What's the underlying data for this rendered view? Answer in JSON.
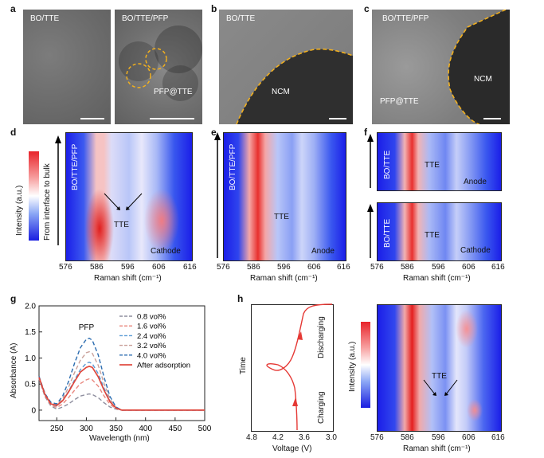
{
  "panels": {
    "a": {
      "letter": "a",
      "left_label": "BO/TTE",
      "right_label": "BO/TTE/PFP",
      "inset_label": "PFP@TTE"
    },
    "b": {
      "letter": "b",
      "label": "BO/TTE",
      "region_label": "NCM"
    },
    "c": {
      "letter": "c",
      "label": "BO/TTE/PFP",
      "region_label": "NCM",
      "inset_label": "PFP@TTE"
    },
    "d": {
      "letter": "d",
      "vertical_label": "BO/TTE/PFP",
      "annotation": "TTE",
      "region_label": "Cathode",
      "colorbar_label": "Intensity (a.u.)",
      "arrow_label": "From interface to bulk",
      "xlabel": "Raman shift (cm⁻¹)",
      "xticks": [
        "576",
        "586",
        "596",
        "606",
        "616"
      ]
    },
    "e": {
      "letter": "e",
      "vertical_label": "BO/TTE/PFP",
      "annotation": "TTE",
      "region_label": "Anode",
      "xlabel": "Raman shift (cm⁻¹)",
      "xticks": [
        "576",
        "586",
        "596",
        "606",
        "616"
      ]
    },
    "f": {
      "letter": "f",
      "top": {
        "vertical_label": "BO/TTE",
        "annotation": "TTE",
        "region_label": "Anode"
      },
      "bottom": {
        "vertical_label": "BO/TTE",
        "annotation": "TTE",
        "region_label": "Cathode"
      },
      "xlabel": "Raman shift (cm⁻¹)",
      "xticks": [
        "576",
        "586",
        "596",
        "606",
        "616"
      ]
    },
    "h": {
      "letter": "h",
      "time_label": "Time",
      "discharging_label": "Discharging",
      "charging_label": "Charging",
      "voltage_label": "Voltage (V)",
      "voltage_ticks": [
        "4.8",
        "4.2",
        "3.6",
        "3.0"
      ],
      "colorbar_label": "Intensity (a.u.)",
      "annotation": "TTE",
      "xlabel": "Raman shift (cm⁻¹)",
      "xticks": [
        "576",
        "586",
        "596",
        "606",
        "616"
      ]
    }
  },
  "chart_data": {
    "type": "line",
    "panel_letter": "g",
    "title": "",
    "xlabel": "Wavelength (nm)",
    "ylabel": "Absorbance (A)",
    "xlim": [
      220,
      500
    ],
    "ylim": [
      -0.2,
      2.0
    ],
    "xticks": [
      250,
      300,
      350,
      400,
      450,
      500
    ],
    "yticks": [
      0,
      0.5,
      1.0,
      1.5,
      2.0
    ],
    "ytick_labels": [
      "0",
      "0.5",
      "1.0",
      "1.5",
      "2.0"
    ],
    "peak_annotation": "PFP",
    "legend_position": "top-right",
    "x": [
      220,
      230,
      240,
      250,
      260,
      270,
      280,
      290,
      300,
      305,
      310,
      320,
      330,
      340,
      350,
      360,
      380,
      400,
      450,
      500
    ],
    "series": [
      {
        "name": "0.8 vol%",
        "color": "#8e8e9e",
        "dashed": true,
        "values": [
          0.6,
          0.26,
          0.08,
          0.02,
          0.06,
          0.12,
          0.2,
          0.27,
          0.3,
          0.31,
          0.3,
          0.24,
          0.14,
          0.06,
          0.02,
          0.0,
          0.0,
          0.0,
          0.0,
          0.0
        ]
      },
      {
        "name": "1.6 vol%",
        "color": "#e9877e",
        "dashed": true,
        "values": [
          0.62,
          0.28,
          0.1,
          0.05,
          0.12,
          0.24,
          0.38,
          0.51,
          0.58,
          0.6,
          0.58,
          0.46,
          0.27,
          0.11,
          0.03,
          0.0,
          0.0,
          0.0,
          0.0,
          0.0
        ]
      },
      {
        "name": "2.4 vol%",
        "color": "#5b9bd5",
        "dashed": true,
        "values": [
          0.63,
          0.3,
          0.12,
          0.08,
          0.18,
          0.36,
          0.58,
          0.78,
          0.9,
          0.92,
          0.89,
          0.7,
          0.42,
          0.17,
          0.04,
          0.0,
          0.0,
          0.0,
          0.0,
          0.0
        ]
      },
      {
        "name": "3.2 vol%",
        "color": "#c9a09a",
        "dashed": true,
        "values": [
          0.64,
          0.31,
          0.13,
          0.1,
          0.22,
          0.44,
          0.72,
          0.96,
          1.1,
          1.12,
          1.09,
          0.86,
          0.51,
          0.21,
          0.05,
          0.0,
          0.0,
          0.0,
          0.0,
          0.0
        ]
      },
      {
        "name": "4.0 vol%",
        "color": "#2b6cb0",
        "dashed": true,
        "values": [
          0.65,
          0.32,
          0.15,
          0.12,
          0.27,
          0.55,
          0.9,
          1.2,
          1.36,
          1.38,
          1.34,
          1.06,
          0.63,
          0.26,
          0.06,
          0.0,
          0.0,
          0.0,
          0.0,
          0.0
        ]
      },
      {
        "name": "After adsorption",
        "color": "#e0473c",
        "dashed": false,
        "values": [
          0.63,
          0.3,
          0.12,
          0.09,
          0.18,
          0.35,
          0.55,
          0.73,
          0.82,
          0.84,
          0.82,
          0.64,
          0.38,
          0.16,
          0.04,
          0.0,
          0.0,
          0.0,
          0.0,
          0.0
        ]
      }
    ]
  }
}
